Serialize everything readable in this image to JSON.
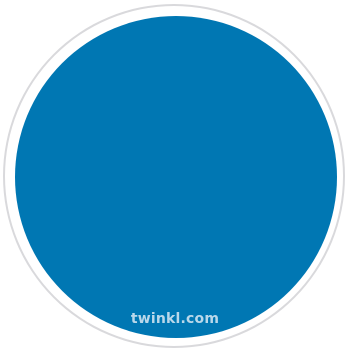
{
  "badge": {
    "fill_color": "#0077b3",
    "ring_color": "#d9d9dc"
  },
  "watermark": {
    "text": "twinkl.com",
    "color": "#cfe3f1"
  }
}
